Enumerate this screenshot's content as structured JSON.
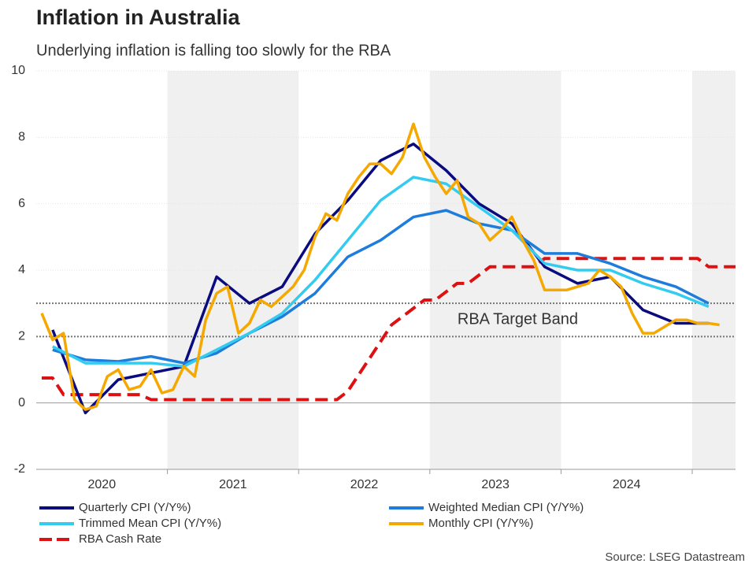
{
  "chart_data": {
    "type": "line",
    "title": "Inflation in Australia",
    "subtitle": "Underlying inflation is falling too slowly for the RBA",
    "source": "Source: LSEG Datastream",
    "xlim": [
      2020,
      2025.33
    ],
    "xticks": [
      {
        "value": 2020.5,
        "label": "2020"
      },
      {
        "value": 2021.5,
        "label": "2021"
      },
      {
        "value": 2022.5,
        "label": "2022"
      },
      {
        "value": 2023.5,
        "label": "2023"
      },
      {
        "value": 2024.5,
        "label": "2024"
      }
    ],
    "ylim": [
      -2,
      10
    ],
    "yticks": [
      -2,
      0,
      2,
      4,
      6,
      8,
      10
    ],
    "grid": true,
    "reference_lines": [
      2,
      3
    ],
    "annotations": [
      {
        "text": "RBA Target Band",
        "x": 2023.67,
        "y": 2.5
      }
    ],
    "series": [
      {
        "name": "Quarterly CPI (Y/Y%)",
        "color": "#0b0b80",
        "dashed": false,
        "x": [
          2020.125,
          2020.375,
          2020.625,
          2020.875,
          2021.125,
          2021.375,
          2021.625,
          2021.875,
          2022.125,
          2022.375,
          2022.625,
          2022.875,
          2023.125,
          2023.375,
          2023.625,
          2023.875,
          2024.125,
          2024.375,
          2024.625,
          2024.875,
          2025.125
        ],
        "values": [
          2.2,
          -0.3,
          0.7,
          0.9,
          1.1,
          3.8,
          3.0,
          3.5,
          5.1,
          6.1,
          7.3,
          7.8,
          7.0,
          6.0,
          5.4,
          4.1,
          3.6,
          3.8,
          2.8,
          2.4,
          2.4
        ]
      },
      {
        "name": "Weighted Median CPI (Y/Y%)",
        "color": "#1e7ddc",
        "dashed": false,
        "x": [
          2020.125,
          2020.375,
          2020.625,
          2020.875,
          2021.125,
          2021.375,
          2021.625,
          2021.875,
          2022.125,
          2022.375,
          2022.625,
          2022.875,
          2023.125,
          2023.375,
          2023.625,
          2023.875,
          2024.125,
          2024.375,
          2024.625,
          2024.875,
          2025.125
        ],
        "values": [
          1.6,
          1.3,
          1.25,
          1.4,
          1.2,
          1.5,
          2.1,
          2.6,
          3.3,
          4.4,
          4.9,
          5.6,
          5.8,
          5.4,
          5.2,
          4.5,
          4.5,
          4.2,
          3.8,
          3.5,
          3.0
        ]
      },
      {
        "name": "Trimmed Mean CPI (Y/Y%)",
        "color": "#33ccf0",
        "dashed": false,
        "x": [
          2020.125,
          2020.375,
          2020.625,
          2020.875,
          2021.125,
          2021.375,
          2021.625,
          2021.875,
          2022.125,
          2022.375,
          2022.625,
          2022.875,
          2023.125,
          2023.375,
          2023.625,
          2023.875,
          2024.125,
          2024.375,
          2024.625,
          2024.875,
          2025.125
        ],
        "values": [
          1.7,
          1.2,
          1.2,
          1.2,
          1.1,
          1.6,
          2.1,
          2.7,
          3.7,
          4.9,
          6.1,
          6.8,
          6.6,
          5.9,
          5.2,
          4.2,
          4.0,
          4.0,
          3.6,
          3.3,
          2.9
        ]
      },
      {
        "name": "Monthly CPI (Y/Y%)",
        "color": "#f5a800",
        "dashed": false,
        "x": [
          2020.042,
          2020.125,
          2020.208,
          2020.292,
          2020.375,
          2020.458,
          2020.542,
          2020.625,
          2020.708,
          2020.792,
          2020.875,
          2020.958,
          2021.042,
          2021.125,
          2021.208,
          2021.292,
          2021.375,
          2021.458,
          2021.542,
          2021.625,
          2021.708,
          2021.792,
          2021.875,
          2021.958,
          2022.042,
          2022.125,
          2022.208,
          2022.292,
          2022.375,
          2022.458,
          2022.542,
          2022.625,
          2022.708,
          2022.792,
          2022.875,
          2022.958,
          2023.042,
          2023.125,
          2023.208,
          2023.292,
          2023.375,
          2023.458,
          2023.542,
          2023.625,
          2023.708,
          2023.792,
          2023.875,
          2023.958,
          2024.042,
          2024.125,
          2024.208,
          2024.292,
          2024.375,
          2024.458,
          2024.542,
          2024.625,
          2024.708,
          2024.792,
          2024.875,
          2024.958,
          2025.042,
          2025.125,
          2025.208
        ],
        "values": [
          2.7,
          1.9,
          2.1,
          0.1,
          -0.2,
          -0.1,
          0.8,
          1.0,
          0.4,
          0.5,
          1.0,
          0.3,
          0.4,
          1.1,
          0.8,
          2.5,
          3.3,
          3.5,
          2.1,
          2.4,
          3.1,
          2.9,
          3.2,
          3.5,
          4.0,
          5.0,
          5.7,
          5.5,
          6.3,
          6.8,
          7.2,
          7.2,
          6.9,
          7.4,
          8.4,
          7.4,
          6.8,
          6.3,
          6.7,
          5.6,
          5.4,
          4.9,
          5.2,
          5.6,
          4.9,
          4.3,
          3.4,
          3.4,
          3.4,
          3.5,
          3.6,
          4.0,
          3.8,
          3.5,
          2.7,
          2.1,
          2.1,
          2.3,
          2.5,
          2.5,
          2.4,
          2.4,
          2.35
        ]
      },
      {
        "name": "RBA Cash Rate",
        "color": "#dd1111",
        "dashed": true,
        "x": [
          2020.042,
          2020.125,
          2020.208,
          2020.292,
          2020.375,
          2020.458,
          2020.542,
          2020.625,
          2020.708,
          2020.792,
          2020.875,
          2020.958,
          2021.042,
          2021.125,
          2021.208,
          2021.292,
          2021.375,
          2021.458,
          2021.542,
          2021.625,
          2021.708,
          2021.792,
          2021.875,
          2021.958,
          2022.042,
          2022.125,
          2022.208,
          2022.292,
          2022.375,
          2022.458,
          2022.542,
          2022.625,
          2022.708,
          2022.792,
          2022.875,
          2022.958,
          2023.042,
          2023.125,
          2023.208,
          2023.292,
          2023.375,
          2023.458,
          2023.542,
          2023.625,
          2023.708,
          2023.792,
          2023.875,
          2023.958,
          2024.042,
          2024.125,
          2024.208,
          2024.292,
          2024.375,
          2024.458,
          2024.542,
          2024.625,
          2024.708,
          2024.792,
          2024.875,
          2024.958,
          2025.042,
          2025.125,
          2025.208,
          2025.33
        ],
        "values": [
          0.75,
          0.75,
          0.25,
          0.25,
          0.25,
          0.25,
          0.25,
          0.25,
          0.25,
          0.25,
          0.1,
          0.1,
          0.1,
          0.1,
          0.1,
          0.1,
          0.1,
          0.1,
          0.1,
          0.1,
          0.1,
          0.1,
          0.1,
          0.1,
          0.1,
          0.1,
          0.1,
          0.1,
          0.35,
          0.85,
          1.35,
          1.85,
          2.35,
          2.6,
          2.85,
          3.1,
          3.1,
          3.35,
          3.6,
          3.6,
          3.85,
          4.1,
          4.1,
          4.1,
          4.1,
          4.1,
          4.35,
          4.35,
          4.35,
          4.35,
          4.35,
          4.35,
          4.35,
          4.35,
          4.35,
          4.35,
          4.35,
          4.35,
          4.35,
          4.35,
          4.35,
          4.1,
          4.1,
          4.1
        ]
      }
    ]
  }
}
